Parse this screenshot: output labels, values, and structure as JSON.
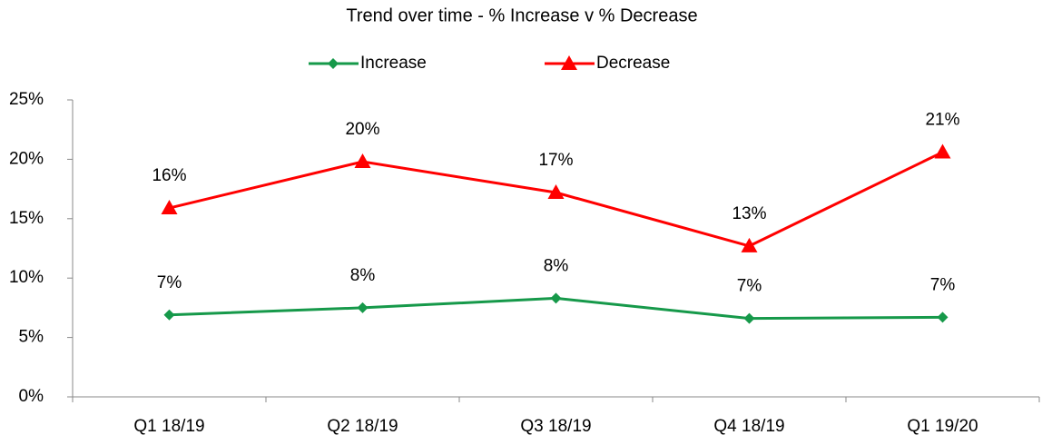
{
  "chart_data": {
    "type": "line",
    "title": "Trend over time - % Increase v % Decrease",
    "categories": [
      "Q1 18/19",
      "Q2 18/19",
      "Q3 18/19",
      "Q4 18/19",
      "Q1 19/20"
    ],
    "series": [
      {
        "name": "Increase",
        "color": "#16994a",
        "marker": "diamond",
        "values": [
          6.9,
          7.5,
          8.3,
          6.6,
          6.7
        ],
        "value_labels": [
          "7%",
          "8%",
          "8%",
          "7%",
          "7%"
        ]
      },
      {
        "name": "Decrease",
        "color": "#ff0000",
        "marker": "triangle",
        "values": [
          15.9,
          19.8,
          17.2,
          12.7,
          20.6
        ],
        "value_labels": [
          "16%",
          "20%",
          "17%",
          "13%",
          "21%"
        ]
      }
    ],
    "ylim": [
      0,
      25
    ],
    "yticks": [
      {
        "value": 0,
        "label": "0%"
      },
      {
        "value": 5,
        "label": "5%"
      },
      {
        "value": 10,
        "label": "10%"
      },
      {
        "value": 15,
        "label": "15%"
      },
      {
        "value": 20,
        "label": "20%"
      },
      {
        "value": 25,
        "label": "25%"
      }
    ],
    "legend": "top"
  }
}
